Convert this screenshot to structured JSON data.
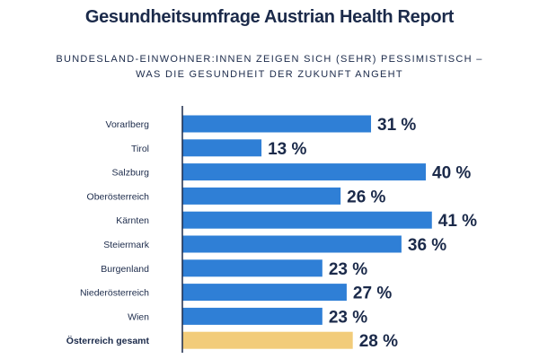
{
  "header": {
    "title": "Gesundheitsumfrage Austrian Health Report",
    "subtitle_line1": "BUNDESLAND-EINWOHNER:INNEN ZEIGEN SICH (SEHR) PESSIMISTISCH –",
    "subtitle_line2": "WAS DIE GESUNDHEIT DER ZUKUNFT ANGEHT"
  },
  "colors": {
    "bar": "#2f7fd6",
    "total_bar": "#f2cc7a",
    "axis": "#1b2a4a",
    "text": "#1b2a4a"
  },
  "chart_data": {
    "type": "bar",
    "orientation": "horizontal",
    "title": "Gesundheitsumfrage Austrian Health Report",
    "subtitle": "BUNDESLAND-EINWOHNER:INNEN ZEIGEN SICH (SEHR) PESSIMISTISCH – WAS DIE GESUNDHEIT DER ZUKUNFT ANGEHT",
    "categories": [
      "Vorarlberg",
      "Tirol",
      "Salzburg",
      "Oberösterreich",
      "Kärnten",
      "Steiermark",
      "Burgenland",
      "Niederösterreich",
      "Wien",
      "Österreich gesamt"
    ],
    "values": [
      31,
      13,
      40,
      26,
      41,
      36,
      23,
      27,
      23,
      28
    ],
    "value_labels": [
      "31 %",
      "13 %",
      "40 %",
      "26 %",
      "41 %",
      "36 %",
      "23 %",
      "27 %",
      "23 %",
      "28 %"
    ],
    "highlight": [
      "Österreich gesamt"
    ],
    "unit": "%",
    "xlim": [
      0,
      41
    ],
    "xlabel": "",
    "ylabel": "",
    "grid": false
  }
}
